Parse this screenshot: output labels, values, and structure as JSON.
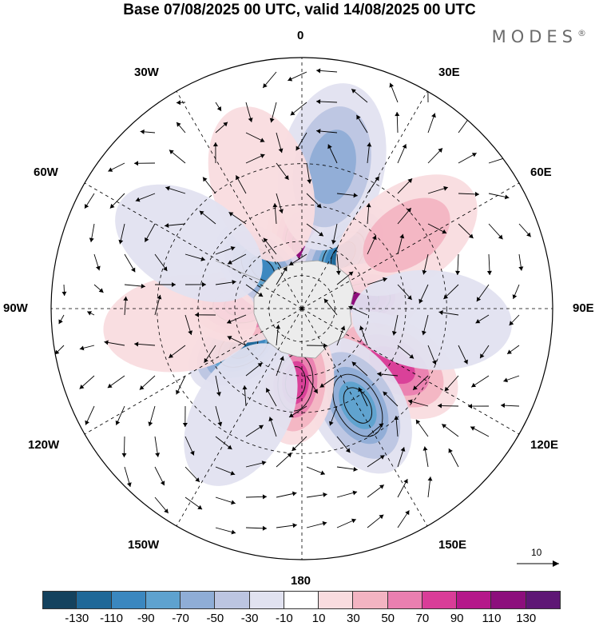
{
  "title": "Base 07/08/2025 00 UTC, valid 14/08/2025 00 UTC",
  "brand": "MODES",
  "brand_mark": "®",
  "longitude_labels": {
    "lon_0": "0",
    "lon_30e": "30E",
    "lon_60e": "60E",
    "lon_90e": "90E",
    "lon_120e": "120E",
    "lon_150e": "150E",
    "lon_180": "180",
    "lon_150w": "150W",
    "lon_120w": "120W",
    "lon_90w": "90W",
    "lon_60w": "60W",
    "lon_30w": "30W"
  },
  "reference_vector": {
    "label": "10"
  },
  "colorbar": {
    "ticks": [
      "-130",
      "-110",
      "-90",
      "-70",
      "-50",
      "-30",
      "-10",
      "10",
      "30",
      "50",
      "70",
      "90",
      "110",
      "130"
    ],
    "colors": [
      "#14425e",
      "#1f6898",
      "#3b87bf",
      "#5ea2cf",
      "#8fadd6",
      "#bcc5e1",
      "#e1e2f0",
      "#ffffff",
      "#f9dcdf",
      "#f3b4c2",
      "#ea7fb0",
      "#d93d98",
      "#b5188a",
      "#8c0f7c",
      "#5e1775"
    ]
  },
  "anomaly_centers": [
    {
      "lon_deg": 0,
      "lat_deg": -61,
      "value": 120
    },
    {
      "lon_deg": 38,
      "lat_deg": -60,
      "value": -125
    },
    {
      "lon_deg": 82,
      "lat_deg": -62,
      "value": 125
    },
    {
      "lon_deg": 125,
      "lat_deg": -70,
      "value": -70
    },
    {
      "lon_deg": 122,
      "lat_deg": -44,
      "value": 80
    },
    {
      "lon_deg": 150,
      "lat_deg": -42,
      "value": -95
    },
    {
      "lon_deg": -175,
      "lat_deg": -57,
      "value": 95
    },
    {
      "lon_deg": -123,
      "lat_deg": -59,
      "value": -125
    },
    {
      "lon_deg": -88,
      "lat_deg": -62,
      "value": 105
    },
    {
      "lon_deg": -45,
      "lat_deg": -65,
      "value": -100
    },
    {
      "lon_deg": 12,
      "lat_deg": -30,
      "value": -65
    },
    {
      "lon_deg": 55,
      "lat_deg": -36,
      "value": 40
    },
    {
      "lon_deg": -18,
      "lat_deg": -35,
      "value": 35
    },
    {
      "lon_deg": -97,
      "lat_deg": -38,
      "value": 35
    },
    {
      "lon_deg": 95,
      "lat_deg": -35,
      "value": -30
    },
    {
      "lon_deg": -150,
      "lat_deg": -38,
      "value": -30
    },
    {
      "lon_deg": -60,
      "lat_deg": -35,
      "value": -30
    }
  ]
}
